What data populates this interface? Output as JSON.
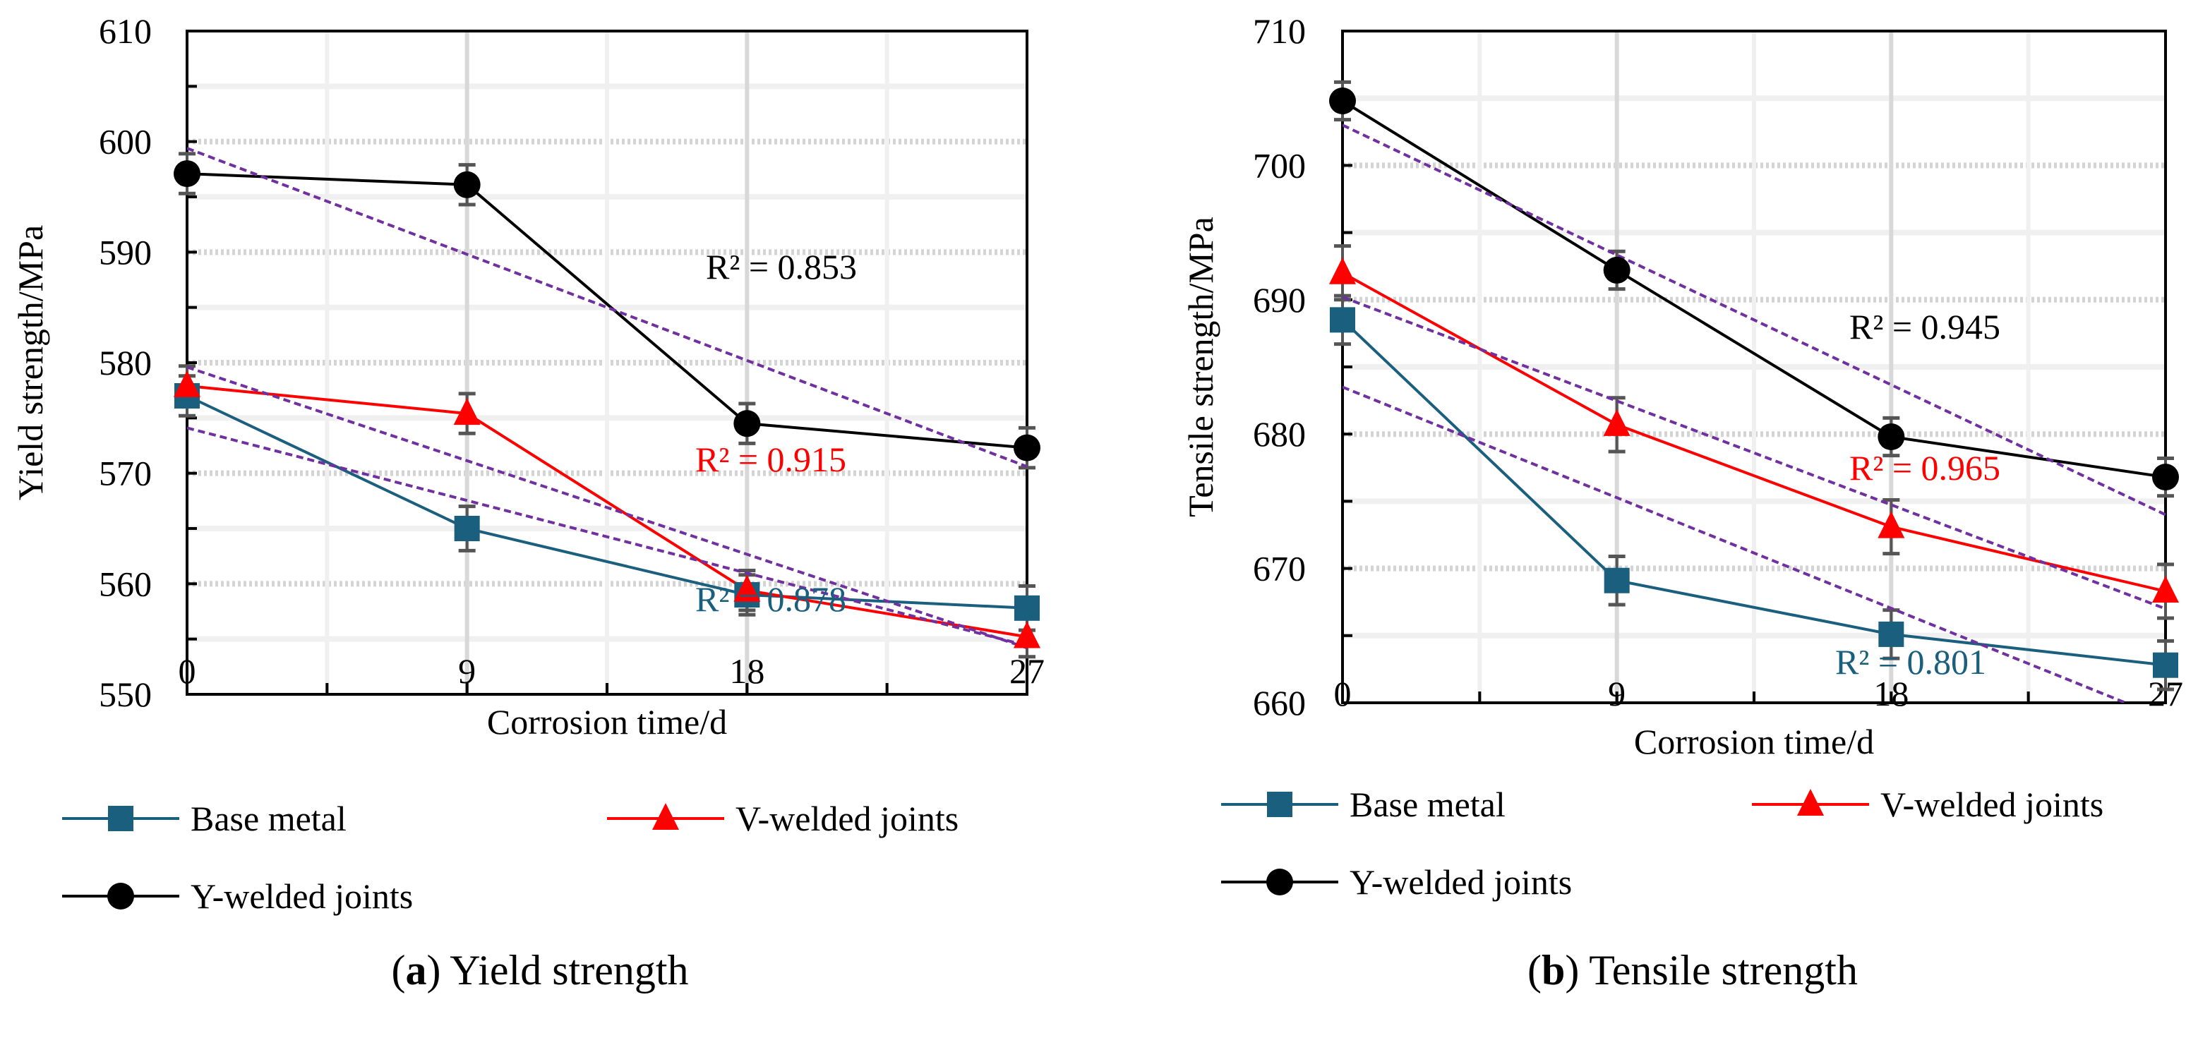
{
  "colors": {
    "base": "#1b5f7e",
    "v": "#ff0000",
    "y": "#000000",
    "trend": "#7030a0",
    "errbar": "#555555"
  },
  "legend": {
    "base": "Base metal",
    "v": "V-welded joints",
    "y": "Y-welded joints"
  },
  "chart_data": [
    {
      "type": "line",
      "caption_letter": "a",
      "caption_text": " Yield strength",
      "xlabel": "Corrosion time/d",
      "ylabel": "Yield strength/MPa",
      "x": [
        0,
        9,
        18,
        27
      ],
      "x_ticks": [
        "0",
        "9",
        "18",
        "27"
      ],
      "ylim": [
        550,
        610
      ],
      "y_ticks": [
        "550",
        "560",
        "570",
        "580",
        "590",
        "600",
        "610"
      ],
      "grid": true,
      "series": [
        {
          "key": "base",
          "name": "Base metal",
          "marker": "square",
          "values": [
            577.0,
            565.0,
            559.0,
            557.8
          ],
          "errors": [
            1.8,
            2.0,
            1.8,
            2.0
          ],
          "trend": [
            574.1,
            554.4
          ],
          "r2": "R² = 0.878"
        },
        {
          "key": "v",
          "name": "V-welded joints",
          "marker": "triangle",
          "values": [
            577.9,
            575.4,
            559.4,
            555.2
          ],
          "errors": [
            1.8,
            1.8,
            1.8,
            1.8
          ],
          "trend": [
            579.6,
            554.2
          ],
          "r2": "R² = 0.915"
        },
        {
          "key": "y",
          "name": "Y-welded joints",
          "marker": "circle",
          "values": [
            597.1,
            596.1,
            574.5,
            572.3
          ],
          "errors": [
            1.8,
            1.8,
            1.8,
            1.8
          ],
          "trend": [
            599.4,
            570.6
          ],
          "r2": "R² = 0.853"
        }
      ]
    },
    {
      "type": "line",
      "caption_letter": "b",
      "caption_text": " Tensile strength",
      "xlabel": "Corrosion time/d",
      "ylabel": "Tensile strength/MPa",
      "x": [
        0,
        9,
        18,
        27
      ],
      "x_ticks": [
        "0",
        "9",
        "18",
        "27"
      ],
      "ylim": [
        660,
        710
      ],
      "y_ticks": [
        "660",
        "670",
        "680",
        "690",
        "700",
        "710"
      ],
      "grid": true,
      "series": [
        {
          "key": "base",
          "name": "Base metal",
          "marker": "square",
          "values": [
            688.5,
            669.1,
            665.1,
            662.8
          ],
          "errors": [
            1.8,
            1.8,
            1.8,
            1.8
          ],
          "trend": [
            683.5,
            658.8
          ],
          "r2": "R² = 0.801"
        },
        {
          "key": "v",
          "name": "V-welded joints",
          "marker": "triangle",
          "values": [
            692.0,
            680.7,
            673.1,
            668.3
          ],
          "errors": [
            2.0,
            2.0,
            2.0,
            2.0
          ],
          "trend": [
            690.2,
            667.0
          ],
          "r2": "R² = 0.965"
        },
        {
          "key": "y",
          "name": "Y-welded joints",
          "marker": "circle",
          "values": [
            704.8,
            692.2,
            679.8,
            676.8
          ],
          "errors": [
            1.4,
            1.4,
            1.4,
            1.4
          ],
          "trend": [
            703.0,
            674.0
          ],
          "r2": "R² = 0.945"
        }
      ]
    }
  ]
}
